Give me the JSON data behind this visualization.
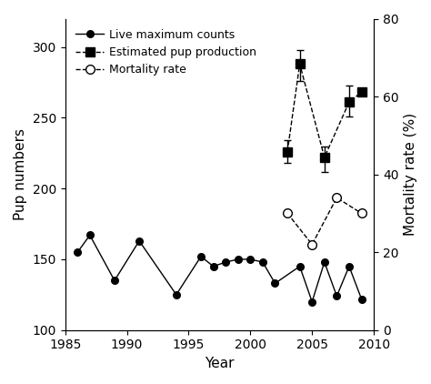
{
  "live_max_counts_years": [
    1986,
    1987,
    1989,
    1991,
    1994,
    1996,
    1997,
    1998,
    1999,
    2000,
    2001,
    2002,
    2004,
    2005,
    2006,
    2007,
    2008,
    2009
  ],
  "live_max_counts_values": [
    155,
    167,
    135,
    163,
    125,
    152,
    145,
    148,
    150,
    150,
    148,
    133,
    145,
    120,
    148,
    124,
    145,
    122
  ],
  "pup_prod_years": [
    2003,
    2004,
    2006,
    2008,
    2009
  ],
  "pup_prod_values": [
    226,
    288,
    222,
    261,
    268
  ],
  "pup_prod_yerr_low": [
    8,
    12,
    10,
    10,
    0
  ],
  "pup_prod_yerr_high": [
    8,
    10,
    8,
    12,
    0
  ],
  "mortality_years": [
    2003,
    2005,
    2007,
    2009
  ],
  "mortality_values": [
    30,
    22,
    34,
    30
  ],
  "xlim": [
    1985,
    2010
  ],
  "ylim_left": [
    100,
    320
  ],
  "ylim_right": [
    0,
    80
  ],
  "yticks_left": [
    100,
    150,
    200,
    250,
    300
  ],
  "yticks_right": [
    0,
    20,
    40,
    60,
    80
  ],
  "xlabel": "Year",
  "ylabel_left": "Pup numbers",
  "ylabel_right": "Mortality rate (%)",
  "legend_labels": [
    "Live maximum counts",
    "Estimated pup production",
    "Mortality rate"
  ],
  "xticks": [
    1985,
    1990,
    1995,
    2000,
    2005,
    2010
  ]
}
